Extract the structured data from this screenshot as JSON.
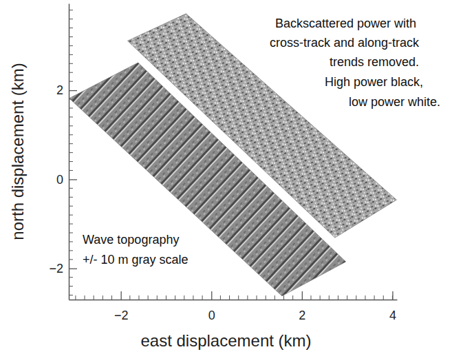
{
  "chart_data": {
    "type": "map",
    "x_label": "east displacement (km)",
    "y_label": "north displacement (km)",
    "xlim": [
      -3.15,
      4.1
    ],
    "ylim": [
      -2.7,
      3.95
    ],
    "xticks": [
      {
        "value": -2,
        "label": "−2"
      },
      0,
      2,
      4
    ],
    "yticks": [
      {
        "value": -2,
        "label": "−2"
      },
      0,
      2
    ],
    "xminor": [
      -3,
      -2.8,
      -2.6,
      -2.4,
      -2.2,
      -1.8,
      -1.6,
      -1.4,
      -1.2,
      -1,
      -0.8,
      -0.6,
      -0.4,
      -0.2,
      0.2,
      0.4,
      0.6,
      0.8,
      1,
      1.2,
      1.4,
      1.6,
      1.8,
      2.2,
      2.4,
      2.6,
      2.8,
      3,
      3.2,
      3.4,
      3.6,
      3.8,
      4
    ],
    "yminor": [
      -2.6,
      -2.4,
      -2.2,
      -1.8,
      -1.6,
      -1.4,
      -1.2,
      -1,
      -0.8,
      -0.6,
      -0.4,
      -0.2,
      0.2,
      0.4,
      0.6,
      0.8,
      1,
      1.2,
      1.4,
      1.6,
      1.8,
      2.2,
      2.4,
      2.6,
      2.8,
      3,
      3.2,
      3.4,
      3.6,
      3.8
    ],
    "swaths": [
      [
        [
          -3.14,
          1.82
        ],
        [
          -1.62,
          2.62
        ],
        [
          2.97,
          -1.85
        ],
        [
          1.56,
          -2.62
        ]
      ],
      [
        [
          -1.85,
          3.11
        ],
        [
          -0.56,
          3.72
        ],
        [
          4.09,
          -0.46
        ],
        [
          2.73,
          -1.31
        ]
      ]
    ],
    "annotations": [
      [
        "Backscattered power with",
        "cross-track and along-track",
        "trends removed.",
        "High power black,",
        "low power white."
      ],
      [
        "Wave topography",
        "+/- 10 m gray scale"
      ]
    ]
  }
}
